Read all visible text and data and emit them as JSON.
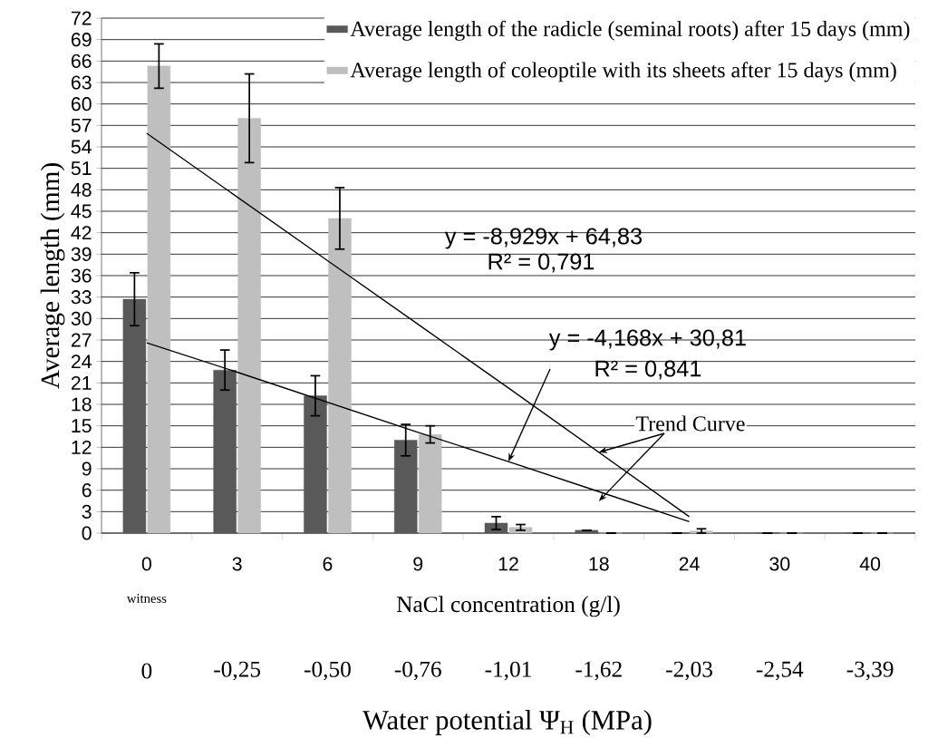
{
  "chart_data": {
    "type": "bar",
    "categories": [
      "0",
      "3",
      "6",
      "9",
      "12",
      "18",
      "24",
      "30",
      "40"
    ],
    "series": [
      {
        "name": "Average length of the radicle (seminal roots) after 15 days (mm)",
        "color": "#595959",
        "values": [
          32.7,
          22.8,
          19.2,
          13.0,
          1.4,
          0.4,
          0,
          0,
          0
        ],
        "errors": [
          3.7,
          2.8,
          2.8,
          2.2,
          0.9,
          null,
          null,
          null,
          null
        ]
      },
      {
        "name": "Average length of coleoptile with its sheets after 15 days (mm)",
        "color": "#bfbfbf",
        "values": [
          65.3,
          58.0,
          44.0,
          13.8,
          0.8,
          0,
          0.3,
          0,
          0
        ],
        "errors": [
          3.1,
          6.2,
          4.3,
          1.2,
          0.4,
          null,
          0.3,
          null,
          null
        ]
      },
      {
        "type": "line",
        "color": "#000000",
        "values": [
          55.9,
          47.0,
          38.1,
          29.2,
          20.3,
          11.3,
          2.3,
          null,
          null
        ]
      },
      {
        "type": "line",
        "color": "#000000",
        "values": [
          26.6,
          22.5,
          18.3,
          14.1,
          10.0,
          5.8,
          1.6,
          null,
          null
        ]
      }
    ],
    "ylim": [
      0,
      72
    ],
    "yticks": [
      0,
      3,
      6,
      9,
      12,
      15,
      18,
      21,
      24,
      27,
      30,
      33,
      36,
      39,
      42,
      45,
      48,
      51,
      54,
      57,
      60,
      63,
      66,
      69,
      72
    ],
    "xlabel": "NaCl concentration (g/l)",
    "ylabel": "Average length (mm)",
    "annotations": [
      "witness",
      "0",
      "-0,25",
      "-0,50",
      "-0,76",
      "-1,01",
      "-1,62",
      "-2,03",
      "-2,54",
      "-3,39",
      "Water potential Ψ$_{H}$ (MPa)",
      "y = -8,929x + 64,83",
      "R² = 0,791",
      {
        "text": "y = -4,168x + 30,81",
        "x": "12",
        "y": 10.0
      },
      "R² = 0,841",
      {
        "text": "Trend Curve",
        "x": "18",
        "y": 11.3
      }
    ],
    "grid": "y",
    "legend": "top right"
  }
}
